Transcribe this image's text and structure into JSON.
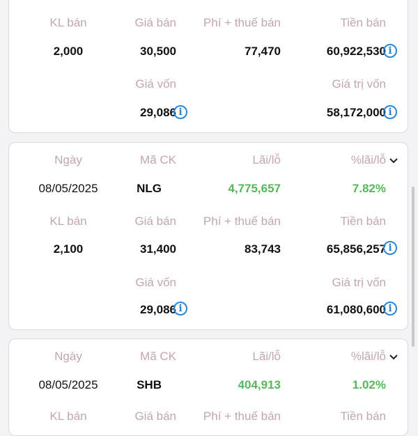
{
  "labels": {
    "ngay": "Ngày",
    "ma_ck": "Mã CK",
    "lai_lo": "Lãi/lỗ",
    "pct_lai_lo": "%lãi/lỗ",
    "kl_ban": "KL bán",
    "gia_ban": "Giá bán",
    "phi_thue": "Phí + thuế bán",
    "tien_ban": "Tiền bán",
    "gia_von": "Giá vốn",
    "gia_tri_von": "Giá trị vốn"
  },
  "colors": {
    "profit": "#55b85a",
    "info": "#2b86d6",
    "label": "#c2a7aa"
  },
  "icons": {
    "info": "info-icon",
    "expand": "chevron-down-icon"
  },
  "cards": [
    {
      "kl_ban": "2,000",
      "gia_ban": "30,500",
      "phi_thue": "77,470",
      "tien_ban": "60,922,530",
      "gia_von": "29,086",
      "gia_tri_von": "58,172,000"
    },
    {
      "ngay": "08/05/2025",
      "ma_ck": "NLG",
      "lai_lo": "4,775,657",
      "pct_lai_lo": "7.82%",
      "kl_ban": "2,100",
      "gia_ban": "31,400",
      "phi_thue": "83,743",
      "tien_ban": "65,856,257",
      "gia_von": "29,086",
      "gia_tri_von": "61,080,600"
    },
    {
      "ngay": "08/05/2025",
      "ma_ck": "SHB",
      "lai_lo": "404,913",
      "pct_lai_lo": "1.02%"
    }
  ]
}
